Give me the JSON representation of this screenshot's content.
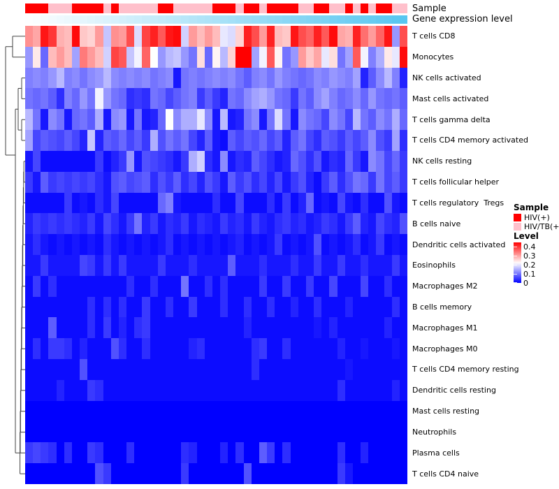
{
  "figure": {
    "annotation_labels": [
      "Sample",
      "Gene expression level"
    ]
  },
  "legend": {
    "sample_title": "Sample",
    "sample_items": [
      {
        "label": "HIV(+)",
        "color": "#ff0000"
      },
      {
        "label": "HIV/TB(+)",
        "color": "#ffc0cb"
      }
    ],
    "level_title": "Level",
    "level_ticks": [
      "0.4",
      "0.3",
      "0.2",
      "0.1",
      "0"
    ]
  },
  "colors": {
    "hiv_positive": "#ff0000",
    "hiv_tb_positive": "#ffc0cb",
    "gene_low": "#fdfeff",
    "gene_high": "#58c6f0",
    "heat_low": "#0000ff",
    "heat_mid": "#ffffff",
    "heat_high": "#ff0000",
    "dendrogram": "#404040"
  },
  "chart_data": {
    "type": "heatmap",
    "title": "",
    "n_cols": 49,
    "value_domain": [
      0,
      0.45
    ],
    "white_point": 0.22,
    "legend_ticks": [
      0.4,
      0.3,
      0.2,
      0.1,
      0
    ],
    "rows": [
      "T cells CD8",
      "Monocytes",
      "NK cells activated",
      "Mast cells activated",
      "T cells gamma delta",
      "T cells CD4 memory activated",
      "NK cells resting",
      "T cells follicular helper",
      "T cells regulatory  Tregs",
      "B cells naive",
      "Dendritic cells activated",
      "Eosinophils",
      "Macrophages M2",
      "B cells memory",
      "Macrophages M1",
      "Macrophages M0",
      "T cells CD4 memory resting",
      "Dendritic cells resting",
      "Mast cells resting",
      "Neutrophils",
      "Plasma cells",
      "T cells CD4 naive"
    ],
    "column_annotations": {
      "sample": [
        "HIV(+)",
        "HIV(+)",
        "HIV(+)",
        "HIV/TB(+)",
        "HIV/TB(+)",
        "HIV/TB(+)",
        "HIV(+)",
        "HIV(+)",
        "HIV(+)",
        "HIV(+)",
        "HIV/TB(+)",
        "HIV(+)",
        "HIV/TB(+)",
        "HIV/TB(+)",
        "HIV/TB(+)",
        "HIV/TB(+)",
        "HIV/TB(+)",
        "HIV(+)",
        "HIV(+)",
        "HIV/TB(+)",
        "HIV/TB(+)",
        "HIV/TB(+)",
        "HIV/TB(+)",
        "HIV/TB(+)",
        "HIV(+)",
        "HIV(+)",
        "HIV(+)",
        "HIV/TB(+)",
        "HIV(+)",
        "HIV(+)",
        "HIV/TB(+)",
        "HIV(+)",
        "HIV(+)",
        "HIV(+)",
        "HIV(+)",
        "HIV/TB(+)",
        "HIV/TB(+)",
        "HIV(+)",
        "HIV(+)",
        "HIV/TB(+)",
        "HIV/TB(+)",
        "HIV(+)",
        "HIV/TB(+)",
        "HIV(+)",
        "HIV/TB(+)",
        "HIV(+)",
        "HIV(+)",
        "HIV/TB(+)",
        "HIV/TB(+)"
      ],
      "gene_expression_level": [
        0,
        0.021,
        0.042,
        0.063,
        0.083,
        0.104,
        0.125,
        0.146,
        0.167,
        0.188,
        0.208,
        0.229,
        0.25,
        0.271,
        0.292,
        0.313,
        0.333,
        0.354,
        0.375,
        0.396,
        0.417,
        0.438,
        0.458,
        0.479,
        0.5,
        0.521,
        0.542,
        0.563,
        0.583,
        0.604,
        0.625,
        0.646,
        0.667,
        0.688,
        0.708,
        0.729,
        0.75,
        0.771,
        0.792,
        0.813,
        0.833,
        0.854,
        0.875,
        0.896,
        0.917,
        0.938,
        0.958,
        0.979,
        1
      ]
    },
    "values": [
      [
        0.32,
        0.3,
        0.43,
        0.4,
        0.29,
        0.28,
        0.44,
        0.27,
        0.26,
        0.31,
        0.17,
        0.32,
        0.31,
        0.38,
        0.19,
        0.39,
        0.42,
        0.37,
        0.43,
        0.44,
        0.18,
        0.31,
        0.28,
        0.31,
        0.28,
        0.2,
        0.19,
        0.26,
        0.42,
        0.38,
        0.31,
        0.42,
        0.28,
        0.27,
        0.43,
        0.38,
        0.36,
        0.42,
        0.37,
        0.44,
        0.3,
        0.29,
        0.42,
        0.35,
        0.31,
        0.36,
        0.43,
        0.13,
        0.38
      ],
      [
        0.13,
        0.24,
        0.09,
        0.28,
        0.31,
        0.28,
        0.14,
        0.34,
        0.31,
        0.28,
        0.18,
        0.39,
        0.37,
        0.17,
        0.21,
        0.36,
        0.22,
        0.13,
        0.16,
        0.17,
        0.13,
        0.1,
        0.25,
        0.09,
        0.23,
        0.16,
        0.26,
        0.45,
        0.45,
        0.14,
        0.21,
        0.37,
        0.23,
        0.1,
        0.13,
        0.31,
        0.27,
        0.3,
        0.2,
        0.25,
        0.1,
        0.14,
        0.37,
        0.21,
        0.11,
        0.15,
        0.24,
        0.2,
        0.44
      ],
      [
        0.11,
        0.12,
        0.11,
        0.13,
        0.16,
        0.11,
        0.12,
        0.1,
        0.12,
        0.13,
        0.16,
        0.12,
        0.11,
        0.12,
        0.11,
        0.12,
        0.1,
        0.11,
        0.12,
        0.02,
        0.1,
        0.11,
        0.1,
        0.11,
        0.12,
        0.11,
        0.12,
        0.1,
        0.08,
        0.11,
        0.12,
        0.1,
        0.13,
        0.11,
        0.1,
        0.09,
        0.1,
        0.12,
        0.11,
        0.13,
        0.12,
        0.11,
        0.14,
        0.03,
        0.08,
        0.12,
        0.16,
        0.11,
        0.03
      ],
      [
        0.1,
        0.09,
        0.1,
        0.08,
        0.04,
        0.11,
        0.09,
        0.13,
        0.1,
        0.21,
        0.13,
        0.1,
        0.09,
        0.04,
        0.05,
        0.04,
        0.1,
        0.09,
        0.06,
        0.08,
        0.1,
        0.11,
        0.05,
        0.08,
        0.05,
        0.03,
        0.1,
        0.09,
        0.12,
        0.14,
        0.15,
        0.13,
        0.1,
        0.09,
        0.05,
        0.1,
        0.08,
        0.12,
        0.14,
        0.11,
        0.09,
        0.1,
        0.12,
        0.09,
        0.13,
        0.1,
        0.09,
        0.1,
        0.08
      ],
      [
        0.16,
        0.1,
        0.02,
        0.12,
        0.1,
        0.02,
        0.09,
        0.1,
        0.08,
        0.15,
        0.02,
        0.12,
        0.13,
        0.02,
        0.1,
        0.02,
        0.03,
        0.09,
        0.22,
        0.12,
        0.15,
        0.15,
        0.2,
        0.12,
        0.02,
        0.16,
        0.02,
        0.03,
        0.1,
        0.12,
        0.02,
        0.1,
        0.19,
        0.1,
        0.02,
        0.12,
        0.1,
        0.09,
        0.06,
        0.12,
        0.1,
        0.06,
        0.16,
        0.1,
        0.08,
        0.12,
        0.1,
        0.15,
        0.09
      ],
      [
        0.14,
        0.06,
        0.08,
        0.07,
        0.06,
        0.08,
        0.06,
        0.03,
        0.17,
        0.03,
        0.08,
        0.07,
        0.09,
        0.06,
        0.08,
        0.05,
        0.15,
        0.07,
        0.1,
        0.08,
        0.1,
        0.06,
        0.03,
        0.08,
        0.02,
        0.01,
        0.08,
        0.06,
        0.08,
        0.07,
        0.09,
        0.06,
        0.08,
        0.03,
        0.08,
        0.1,
        0.06,
        0.04,
        0.08,
        0.07,
        0.05,
        0.08,
        0.06,
        0.08,
        0.12,
        0.07,
        0.05,
        0.14,
        0.04
      ],
      [
        0.02,
        0.06,
        0.01,
        0.01,
        0.01,
        0.01,
        0.01,
        0.01,
        0.01,
        0.05,
        0.01,
        0.03,
        0.05,
        0.13,
        0.02,
        0.07,
        0.06,
        0.05,
        0.04,
        0.02,
        0.05,
        0.15,
        0.18,
        0.04,
        0.02,
        0.12,
        0.02,
        0.04,
        0.03,
        0.08,
        0.06,
        0.04,
        0.02,
        0.03,
        0.09,
        0.07,
        0.04,
        0.07,
        0.02,
        0.04,
        0.03,
        0.09,
        0.05,
        0.02,
        0.12,
        0.1,
        0.06,
        0.09,
        0.05
      ],
      [
        0.05,
        0.02,
        0.08,
        0.05,
        0.06,
        0.05,
        0.06,
        0.05,
        0.06,
        0.04,
        0.02,
        0.07,
        0.08,
        0.06,
        0.07,
        0.08,
        0.04,
        0.07,
        0.05,
        0.08,
        0.04,
        0.06,
        0.03,
        0.07,
        0.05,
        0.02,
        0.08,
        0.05,
        0.07,
        0.04,
        0.06,
        0.03,
        0.06,
        0.02,
        0.05,
        0.07,
        0.03,
        0.01,
        0.05,
        0.08,
        0.04,
        0.07,
        0.1,
        0.09,
        0.05,
        0.1,
        0.06,
        0.08,
        0.05
      ],
      [
        0.01,
        0.01,
        0.01,
        0.01,
        0.01,
        0.05,
        0.01,
        0.02,
        0.01,
        0.04,
        0.02,
        0.06,
        0.01,
        0.01,
        0.01,
        0.01,
        0.01,
        0.09,
        0.11,
        0.02,
        0.01,
        0.01,
        0.01,
        0.01,
        0.04,
        0.01,
        0.01,
        0.06,
        0.01,
        0.01,
        0.01,
        0.04,
        0.01,
        0.05,
        0.01,
        0.03,
        0.09,
        0.01,
        0.02,
        0.01,
        0.06,
        0.02,
        0.01,
        0.04,
        0.01,
        0.01,
        0.07,
        0.02,
        0.01
      ],
      [
        0.03,
        0.05,
        0.04,
        0.05,
        0.04,
        0.05,
        0.04,
        0.03,
        0.05,
        0.02,
        0.06,
        0.04,
        0.02,
        0.05,
        0.1,
        0.03,
        0.05,
        0.02,
        0.04,
        0.03,
        0.05,
        0.02,
        0.04,
        0.03,
        0.02,
        0.05,
        0.03,
        0.04,
        0.02,
        0.05,
        0.03,
        0.02,
        0.04,
        0.05,
        0.03,
        0.04,
        0.02,
        0.03,
        0.05,
        0.04,
        0.02,
        0.05,
        0.08,
        0.03,
        0.02,
        0.06,
        0.04,
        0.03,
        0.07
      ],
      [
        0.02,
        0.04,
        0.02,
        0.01,
        0.02,
        0.01,
        0.02,
        0.01,
        0.02,
        0.01,
        0.04,
        0.02,
        0.01,
        0.02,
        0.01,
        0.02,
        0.01,
        0.02,
        0.04,
        0.01,
        0.02,
        0.01,
        0.02,
        0.01,
        0.02,
        0.01,
        0.02,
        0.03,
        0.01,
        0.02,
        0.01,
        0.02,
        0.05,
        0.01,
        0.02,
        0.01,
        0.02,
        0.07,
        0.01,
        0.02,
        0.01,
        0.02,
        0.04,
        0.01,
        0.02,
        0.05,
        0.01,
        0.02,
        0.01
      ],
      [
        0.02,
        0.02,
        0.05,
        0.02,
        0.02,
        0.02,
        0.02,
        0.06,
        0.05,
        0.02,
        0.05,
        0.02,
        0.05,
        0.02,
        0.02,
        0.02,
        0.02,
        0.05,
        0.02,
        0.02,
        0.02,
        0.04,
        0.02,
        0.02,
        0.02,
        0.02,
        0.08,
        0.02,
        0.02,
        0.02,
        0.04,
        0.02,
        0.02,
        0.02,
        0.04,
        0.02,
        0.02,
        0.05,
        0.02,
        0.02,
        0.05,
        0.02,
        0.02,
        0.04,
        0.02,
        0.02,
        0.02,
        0.05,
        0.02
      ],
      [
        0.01,
        0.05,
        0.01,
        0.04,
        0.01,
        0.01,
        0.01,
        0.01,
        0.01,
        0.01,
        0.01,
        0.01,
        0.01,
        0.04,
        0.01,
        0.01,
        0.04,
        0.01,
        0.01,
        0.01,
        0.1,
        0.01,
        0.01,
        0.04,
        0.01,
        0.04,
        0.01,
        0.01,
        0.01,
        0.01,
        0.05,
        0.01,
        0.01,
        0.05,
        0.01,
        0.01,
        0.05,
        0.01,
        0.01,
        0.06,
        0.01,
        0.01,
        0.01,
        0.06,
        0.01,
        0.01,
        0.04,
        0.01,
        0.01
      ],
      [
        0.01,
        0.01,
        0.01,
        0.01,
        0.01,
        0.01,
        0.01,
        0.01,
        0.04,
        0.01,
        0.04,
        0.01,
        0.04,
        0.01,
        0.01,
        0.05,
        0.01,
        0.01,
        0.04,
        0.01,
        0.01,
        0.05,
        0.01,
        0.01,
        0.01,
        0.04,
        0.01,
        0.01,
        0.04,
        0.01,
        0.01,
        0.04,
        0.01,
        0.01,
        0.03,
        0.01,
        0.01,
        0.04,
        0.01,
        0.01,
        0.01,
        0.03,
        0.01,
        0.01,
        0.01,
        0.01,
        0.01,
        0.04,
        0.01
      ],
      [
        0.01,
        0.01,
        0.01,
        0.08,
        0.01,
        0.01,
        0.01,
        0.01,
        0.04,
        0.01,
        0.05,
        0.01,
        0.03,
        0.01,
        0.04,
        0.05,
        0.01,
        0.01,
        0.01,
        0.01,
        0.01,
        0.01,
        0.01,
        0.01,
        0.01,
        0.01,
        0.01,
        0.01,
        0.03,
        0.01,
        0.01,
        0.01,
        0.01,
        0.01,
        0.01,
        0.01,
        0.01,
        0.02,
        0.01,
        0.03,
        0.01,
        0.01,
        0.01,
        0.01,
        0.01,
        0.01,
        0.03,
        0.01,
        0.01
      ],
      [
        0.01,
        0.04,
        0.01,
        0.05,
        0.05,
        0.04,
        0.01,
        0.03,
        0.01,
        0.01,
        0.01,
        0.07,
        0.04,
        0.01,
        0.01,
        0.04,
        0.01,
        0.01,
        0.01,
        0.01,
        0.01,
        0.03,
        0.04,
        0.01,
        0.01,
        0.01,
        0.01,
        0.01,
        0.01,
        0.04,
        0.05,
        0.01,
        0.01,
        0.04,
        0.01,
        0.01,
        0.01,
        0.01,
        0.01,
        0.01,
        0.03,
        0.01,
        0.01,
        0.02,
        0.01,
        0.01,
        0.01,
        0.02,
        0.01
      ],
      [
        0.01,
        0.01,
        0.01,
        0.01,
        0.01,
        0.01,
        0.01,
        0.07,
        0.01,
        0.01,
        0.01,
        0.01,
        0.01,
        0.01,
        0.01,
        0.01,
        0.01,
        0.01,
        0.01,
        0.01,
        0.01,
        0.01,
        0.01,
        0.01,
        0.01,
        0.01,
        0.01,
        0.01,
        0.01,
        0.04,
        0.01,
        0.01,
        0.01,
        0.01,
        0.01,
        0.01,
        0.01,
        0.01,
        0.01,
        0.01,
        0.01,
        0.02,
        0.01,
        0.01,
        0.01,
        0.01,
        0.01,
        0.01,
        0.01
      ],
      [
        0.01,
        0.01,
        0.01,
        0.01,
        0.03,
        0.01,
        0.01,
        0.01,
        0.05,
        0.04,
        0.01,
        0.01,
        0.01,
        0.01,
        0.01,
        0.01,
        0.01,
        0.01,
        0.01,
        0.01,
        0.01,
        0.01,
        0.01,
        0.01,
        0.01,
        0.01,
        0.01,
        0.01,
        0.01,
        0.01,
        0.01,
        0.01,
        0.01,
        0.01,
        0.01,
        0.01,
        0.01,
        0.01,
        0.01,
        0.01,
        0.04,
        0.01,
        0.01,
        0.01,
        0.01,
        0.01,
        0.01,
        0.03,
        0.01
      ],
      [
        0,
        0,
        0,
        0,
        0,
        0,
        0,
        0,
        0,
        0,
        0,
        0,
        0,
        0,
        0,
        0,
        0,
        0,
        0,
        0,
        0,
        0,
        0,
        0,
        0,
        0,
        0,
        0,
        0,
        0,
        0,
        0,
        0,
        0,
        0,
        0,
        0,
        0,
        0,
        0,
        0,
        0,
        0,
        0,
        0,
        0,
        0,
        0,
        0
      ],
      [
        0,
        0,
        0,
        0,
        0,
        0,
        0,
        0,
        0,
        0,
        0,
        0,
        0,
        0,
        0,
        0,
        0,
        0,
        0,
        0,
        0,
        0,
        0,
        0,
        0,
        0,
        0,
        0,
        0,
        0,
        0,
        0,
        0,
        0,
        0,
        0,
        0,
        0,
        0,
        0,
        0,
        0,
        0,
        0,
        0,
        0,
        0,
        0,
        0
      ],
      [
        0.05,
        0.06,
        0.05,
        0.04,
        0,
        0.04,
        0,
        0,
        0.05,
        0.04,
        0,
        0,
        0,
        0.04,
        0,
        0,
        0,
        0,
        0,
        0,
        0.04,
        0.03,
        0,
        0,
        0,
        0.03,
        0,
        0.04,
        0,
        0,
        0.08,
        0.05,
        0,
        0.04,
        0,
        0,
        0,
        0,
        0,
        0,
        0.04,
        0,
        0,
        0.03,
        0,
        0,
        0,
        0,
        0
      ],
      [
        0,
        0,
        0,
        0,
        0,
        0,
        0,
        0,
        0,
        0.07,
        0.05,
        0,
        0,
        0,
        0,
        0,
        0,
        0,
        0,
        0,
        0.05,
        0,
        0,
        0,
        0,
        0,
        0,
        0,
        0.07,
        0,
        0,
        0,
        0,
        0,
        0,
        0,
        0,
        0,
        0,
        0,
        0.05,
        0.02,
        0,
        0,
        0,
        0,
        0,
        0,
        0
      ]
    ]
  }
}
